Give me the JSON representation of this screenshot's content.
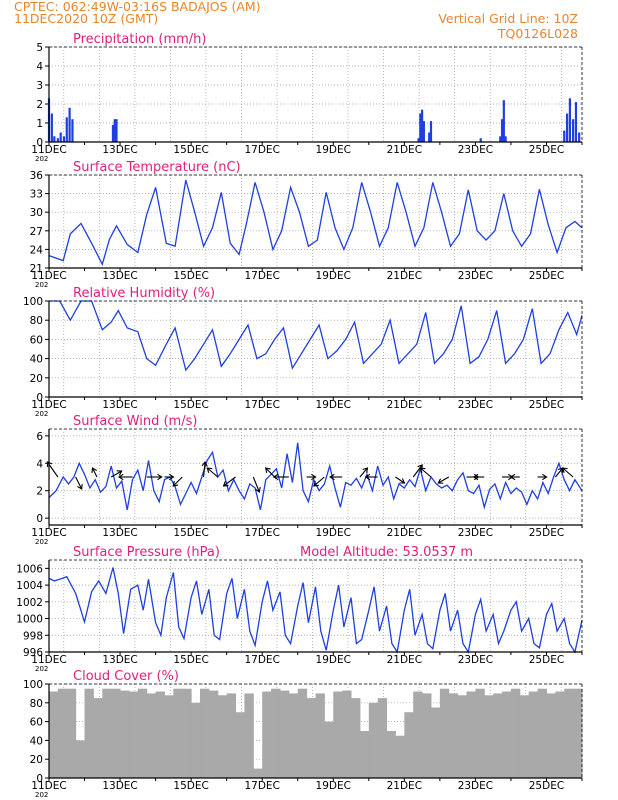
{
  "header": {
    "left_line1": "CPTEC:   062:49W-03:16S   BADAJOS (AM)",
    "left_line2": "11DEC2020 10Z (GMT)",
    "right_line1": "Vertical Grid Line: 10Z",
    "right_line2": "TQ0126L028",
    "year_stub": "202"
  },
  "colors": {
    "header": "#e8862a",
    "panel_title": "#e0207f",
    "series": "#1f3fe0",
    "cloud": "#a9a9a9",
    "grid": "#9a9a9a"
  },
  "x_axis": {
    "start_day": 11,
    "end_day": 26,
    "tick_labels": [
      "11DEC",
      "13DEC",
      "15DEC",
      "17DEC",
      "19DEC",
      "21DEC",
      "23DEC",
      "25DEC"
    ]
  },
  "chart_data": [
    {
      "type": "bar",
      "title": "Precipitation (mm/h)",
      "ylim": [
        0,
        5
      ],
      "yticks": [
        "0",
        "1",
        "2",
        "3",
        "4",
        "5"
      ],
      "x_unit": "day_of_december",
      "series": [
        {
          "x": [
            11.0,
            11.08,
            11.15,
            11.25,
            11.33,
            11.42,
            11.5,
            11.58,
            11.66,
            12.8,
            12.85,
            12.9,
            21.4,
            21.45,
            21.5,
            21.55,
            21.7,
            21.75,
            23.15,
            23.7,
            23.75,
            23.8,
            23.85,
            25.5,
            25.58,
            25.66,
            25.75,
            25.83,
            25.92
          ],
          "values": [
            2.3,
            1.5,
            0.3,
            0.2,
            0.5,
            0.3,
            1.3,
            1.8,
            1.2,
            0.9,
            1.2,
            1.2,
            0.2,
            1.5,
            1.7,
            1.1,
            0.5,
            1.1,
            0.2,
            0.3,
            1.2,
            2.2,
            0.3,
            0.6,
            1.5,
            2.3,
            1.2,
            2.1,
            0.5
          ]
        }
      ]
    },
    {
      "type": "line",
      "title": "Surface Temperature (nC)",
      "ylim": [
        21,
        36
      ],
      "yticks": [
        "21",
        "24",
        "27",
        "30",
        "33",
        "36"
      ],
      "series": [
        {
          "x": [
            11.0,
            11.4,
            11.6,
            11.9,
            12.2,
            12.5,
            12.7,
            12.9,
            13.2,
            13.5,
            13.75,
            14.0,
            14.3,
            14.55,
            14.85,
            15.1,
            15.35,
            15.6,
            15.85,
            16.1,
            16.35,
            16.55,
            16.8,
            17.05,
            17.3,
            17.55,
            17.8,
            18.05,
            18.3,
            18.55,
            18.8,
            19.05,
            19.3,
            19.55,
            19.8,
            20.05,
            20.3,
            20.55,
            20.8,
            21.05,
            21.3,
            21.55,
            21.8,
            22.05,
            22.3,
            22.55,
            22.8,
            23.05,
            23.3,
            23.55,
            23.8,
            24.05,
            24.3,
            24.55,
            24.8,
            25.05,
            25.3,
            25.55,
            25.8,
            26.0
          ],
          "values": [
            23.0,
            22.2,
            26.5,
            28.2,
            25.0,
            21.6,
            25.6,
            27.8,
            24.8,
            23.5,
            29.6,
            34.0,
            25.0,
            24.5,
            35.2,
            30.0,
            24.5,
            27.5,
            33.2,
            25.0,
            23.2,
            28.0,
            34.8,
            30.0,
            24.0,
            27.0,
            34.0,
            30.0,
            24.5,
            25.5,
            33.2,
            27.5,
            24.0,
            27.5,
            34.8,
            30.0,
            24.5,
            27.5,
            34.8,
            30.0,
            24.5,
            27.5,
            34.8,
            30.0,
            24.5,
            26.5,
            33.6,
            27.0,
            25.5,
            27.0,
            33.0,
            27.0,
            24.5,
            26.5,
            33.7,
            28.0,
            23.5,
            27.5,
            28.5,
            27.5
          ]
        }
      ]
    },
    {
      "type": "line",
      "title": "Relative Humidity (%)",
      "ylim": [
        0,
        100
      ],
      "yticks": [
        "0",
        "20",
        "40",
        "60",
        "80",
        "100"
      ],
      "series": [
        {
          "x": [
            11.0,
            11.3,
            11.6,
            11.9,
            12.2,
            12.5,
            12.75,
            12.95,
            13.2,
            13.5,
            13.75,
            14.0,
            14.3,
            14.55,
            14.85,
            15.1,
            15.35,
            15.6,
            15.85,
            16.1,
            16.35,
            16.6,
            16.85,
            17.1,
            17.35,
            17.6,
            17.85,
            18.1,
            18.35,
            18.6,
            18.85,
            19.1,
            19.35,
            19.6,
            19.85,
            20.1,
            20.35,
            20.6,
            20.85,
            21.1,
            21.35,
            21.6,
            21.85,
            22.1,
            22.35,
            22.6,
            22.85,
            23.1,
            23.35,
            23.6,
            23.85,
            24.1,
            24.35,
            24.6,
            24.85,
            25.1,
            25.35,
            25.6,
            25.85,
            26.0
          ],
          "values": [
            100,
            100,
            80,
            100,
            100,
            70,
            78,
            90,
            72,
            68,
            40,
            33,
            55,
            72,
            28,
            40,
            55,
            70,
            32,
            45,
            60,
            75,
            40,
            45,
            60,
            72,
            30,
            45,
            60,
            75,
            40,
            48,
            60,
            78,
            35,
            45,
            55,
            80,
            35,
            45,
            55,
            88,
            35,
            45,
            60,
            95,
            35,
            42,
            60,
            90,
            35,
            45,
            60,
            92,
            35,
            45,
            70,
            88,
            65,
            85
          ]
        }
      ]
    },
    {
      "type": "line",
      "title": "Surface Wind (m/s)",
      "ylim": [
        -0.5,
        6.5
      ],
      "yticks": [
        "0",
        "2",
        "4",
        "6"
      ],
      "series": [
        {
          "x": [
            11.0,
            11.2,
            11.4,
            11.55,
            11.7,
            11.85,
            12.0,
            12.15,
            12.3,
            12.45,
            12.6,
            12.75,
            12.9,
            13.05,
            13.2,
            13.35,
            13.5,
            13.65,
            13.8,
            13.95,
            14.1,
            14.25,
            14.4,
            14.55,
            14.7,
            14.85,
            15.0,
            15.15,
            15.3,
            15.45,
            15.6,
            15.75,
            15.9,
            16.05,
            16.2,
            16.35,
            16.5,
            16.65,
            16.8,
            16.95,
            17.1,
            17.25,
            17.4,
            17.55,
            17.7,
            17.85,
            18.0,
            18.15,
            18.3,
            18.45,
            18.6,
            18.75,
            18.9,
            19.05,
            19.2,
            19.35,
            19.5,
            19.65,
            19.8,
            19.95,
            20.1,
            20.25,
            20.4,
            20.55,
            20.7,
            20.85,
            21.0,
            21.15,
            21.3,
            21.45,
            21.6,
            21.75,
            21.9,
            22.05,
            22.2,
            22.35,
            22.5,
            22.65,
            22.8,
            22.95,
            23.1,
            23.25,
            23.4,
            23.55,
            23.7,
            23.85,
            24.0,
            24.15,
            24.3,
            24.45,
            24.6,
            24.75,
            24.9,
            25.05,
            25.2,
            25.35,
            25.5,
            25.65,
            25.8,
            26.0
          ],
          "values": [
            1.5,
            2.0,
            3.0,
            2.5,
            3.0,
            4.0,
            3.2,
            2.2,
            2.8,
            1.9,
            2.3,
            3.8,
            2.2,
            2.7,
            0.6,
            2.8,
            3.5,
            2.0,
            4.2,
            2.0,
            1.2,
            2.8,
            3.0,
            2.3,
            1.0,
            1.8,
            2.6,
            1.8,
            3.0,
            4.2,
            4.8,
            3.0,
            3.5,
            2.0,
            2.8,
            2.0,
            1.4,
            2.5,
            2.2,
            0.6,
            2.8,
            3.2,
            3.6,
            2.2,
            4.7,
            2.6,
            5.5,
            2.0,
            1.2,
            2.8,
            2.0,
            2.5,
            3.8,
            2.2,
            0.8,
            2.6,
            2.4,
            2.9,
            2.2,
            3.2,
            2.0,
            3.8,
            2.4,
            3.0,
            1.4,
            2.5,
            2.2,
            2.8,
            2.3,
            3.6,
            2.0,
            3.0,
            2.5,
            2.2,
            2.4,
            2.0,
            2.8,
            3.3,
            2.0,
            1.8,
            2.4,
            0.8,
            2.1,
            2.5,
            1.4,
            2.6,
            1.8,
            2.2,
            1.9,
            1.0,
            2.0,
            1.4,
            2.6,
            1.8,
            3.0,
            4.0,
            2.8,
            2.0,
            2.8,
            2.0
          ]
        }
      ],
      "wind_vectors": {
        "x": [
          11.25,
          11.75,
          12.35,
          12.75,
          13.35,
          13.75,
          14.25,
          14.75,
          15.35,
          15.75,
          16.25,
          16.75,
          17.35,
          17.75,
          18.25,
          18.75,
          19.25,
          19.75,
          20.25,
          20.75,
          21.25,
          21.75,
          22.25,
          22.75,
          23.25,
          23.75,
          24.25,
          24.75,
          25.25,
          25.75
        ],
        "dx": [
          -0.35,
          0.2,
          -0.15,
          0.35,
          -0.45,
          0.5,
          0.3,
          -0.3,
          0.05,
          -0.35,
          -0.4,
          0.2,
          -0.3,
          -0.5,
          0.3,
          -0.35,
          -0.4,
          0.25,
          -0.4,
          0.3,
          0.3,
          -0.35,
          -0.35,
          0.4,
          -0.35,
          0.35,
          -0.3,
          0.3,
          0.25,
          -0.35
        ],
        "dy": [
          0.5,
          -0.4,
          0.3,
          0.2,
          0.0,
          0.0,
          0.0,
          -0.3,
          0.5,
          0.3,
          -0.3,
          -0.5,
          0.3,
          0.0,
          0.0,
          -0.3,
          0.0,
          0.3,
          0.0,
          -0.2,
          0.4,
          0.3,
          -0.2,
          0.0,
          0.0,
          0.0,
          0.0,
          0.0,
          0.3,
          0.3
        ]
      }
    },
    {
      "type": "line",
      "title": "Surface Pressure (hPa)",
      "annotation": "Model Altitude: 53.0537 m",
      "ylim": [
        996,
        1007
      ],
      "yticks": [
        "996",
        "998",
        "1000",
        "1002",
        "1004",
        "1006"
      ],
      "series": [
        {
          "x": [
            11.0,
            11.15,
            11.3,
            11.5,
            11.75,
            12.0,
            12.2,
            12.4,
            12.6,
            12.8,
            12.95,
            13.1,
            13.3,
            13.5,
            13.65,
            13.8,
            14.0,
            14.15,
            14.3,
            14.5,
            14.65,
            14.8,
            15.0,
            15.15,
            15.3,
            15.5,
            15.65,
            15.8,
            16.0,
            16.15,
            16.3,
            16.5,
            16.65,
            16.8,
            17.0,
            17.15,
            17.3,
            17.5,
            17.65,
            17.8,
            18.0,
            18.15,
            18.3,
            18.5,
            18.65,
            18.8,
            19.0,
            19.15,
            19.3,
            19.5,
            19.65,
            19.8,
            20.0,
            20.15,
            20.3,
            20.5,
            20.65,
            20.8,
            21.0,
            21.15,
            21.3,
            21.5,
            21.65,
            21.8,
            22.0,
            22.15,
            22.3,
            22.5,
            22.65,
            22.8,
            23.0,
            23.15,
            23.3,
            23.5,
            23.65,
            23.8,
            24.0,
            24.15,
            24.3,
            24.5,
            24.65,
            24.8,
            25.0,
            25.15,
            25.3,
            25.5,
            25.65,
            25.8,
            26.0
          ],
          "values": [
            1004.8,
            1004.5,
            1004.7,
            1005.0,
            1003.0,
            999.6,
            1003.2,
            1004.5,
            1003.0,
            1006.1,
            1003.0,
            998.2,
            1003.5,
            1004.0,
            1001.0,
            1004.7,
            999.5,
            998.0,
            1002.5,
            1005.5,
            999.0,
            997.6,
            1002.5,
            1004.5,
            1000.5,
            1003.5,
            998.0,
            997.5,
            1003.0,
            1004.8,
            1000.0,
            1003.5,
            998.5,
            996.8,
            1002.0,
            1004.5,
            1001.0,
            1003.2,
            998.0,
            997.0,
            1001.5,
            1004.3,
            999.5,
            1003.8,
            998.5,
            996.2,
            1001.0,
            1004.0,
            999.0,
            1002.5,
            997.0,
            997.5,
            1001.0,
            1003.8,
            998.5,
            1001.5,
            997.0,
            996.0,
            1001.0,
            1003.5,
            998.0,
            1000.5,
            997.0,
            996.4,
            1001.0,
            1003.0,
            998.5,
            1001.0,
            997.0,
            996.0,
            1000.5,
            1002.3,
            998.5,
            1000.5,
            997.0,
            998.5,
            1001.0,
            1002.0,
            998.5,
            1000.0,
            997.0,
            996.5,
            1000.5,
            1001.8,
            998.5,
            1000.0,
            997.0,
            996.0,
            999.8
          ]
        }
      ]
    },
    {
      "type": "bar",
      "title": "Cloud Cover (%)",
      "ylim": [
        0,
        100
      ],
      "yticks": [
        "0",
        "20",
        "40",
        "60",
        "80",
        "100"
      ],
      "series": [
        {
          "x": [
            11.0,
            11.25,
            11.5,
            11.75,
            12.0,
            12.25,
            12.5,
            12.75,
            13.0,
            13.25,
            13.5,
            13.75,
            14.0,
            14.25,
            14.5,
            14.75,
            15.0,
            15.25,
            15.5,
            15.75,
            16.0,
            16.25,
            16.5,
            16.75,
            17.0,
            17.25,
            17.5,
            17.75,
            18.0,
            18.25,
            18.5,
            18.75,
            19.0,
            19.25,
            19.5,
            19.75,
            20.0,
            20.25,
            20.5,
            20.75,
            21.0,
            21.25,
            21.5,
            21.75,
            22.0,
            22.25,
            22.5,
            22.75,
            23.0,
            23.25,
            23.5,
            23.75,
            24.0,
            24.25,
            24.5,
            24.75,
            25.0,
            25.25,
            25.5,
            25.75
          ],
          "values": [
            92,
            95,
            95,
            40,
            95,
            85,
            95,
            95,
            93,
            92,
            95,
            90,
            92,
            88,
            95,
            95,
            80,
            95,
            93,
            88,
            90,
            70,
            90,
            10,
            92,
            95,
            93,
            90,
            95,
            85,
            90,
            60,
            92,
            93,
            85,
            50,
            80,
            85,
            50,
            45,
            70,
            92,
            90,
            75,
            95,
            90,
            88,
            92,
            95,
            88,
            90,
            92,
            95,
            88,
            92,
            95,
            90,
            92,
            95,
            95
          ]
        }
      ]
    }
  ]
}
